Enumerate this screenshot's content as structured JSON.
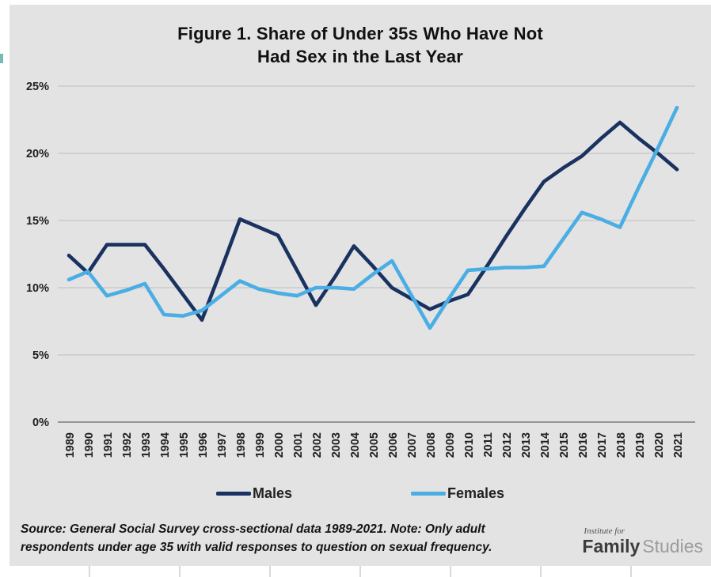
{
  "page": {
    "background": "#ffffff",
    "panel_background": "#e3e3e3"
  },
  "chart_data": {
    "type": "line",
    "title": "Figure 1. Share of Under 35s Who Have Not Had Sex in the Last Year",
    "title_lines": [
      "Figure 1. Share of Under 35s Who Have Not",
      "Had Sex in the Last Year"
    ],
    "x": [
      "1989",
      "1990",
      "1991",
      "1992",
      "1993",
      "1994",
      "1995",
      "1996",
      "1997",
      "1998",
      "1999",
      "2000",
      "2001",
      "2002",
      "2003",
      "2004",
      "2005",
      "2006",
      "2007",
      "2008",
      "2009",
      "2010",
      "2011",
      "2012",
      "2013",
      "2014",
      "2015",
      "2016",
      "2017",
      "2018",
      "2019",
      "2020",
      "2021"
    ],
    "y_tick_labels": [
      "25%",
      "20%",
      "15%",
      "10%",
      "5%",
      "0%"
    ],
    "y_tick_values": [
      25,
      20,
      15,
      10,
      5,
      0
    ],
    "ylim": [
      0,
      25
    ],
    "grid": true,
    "legend_position": "bottom",
    "series": [
      {
        "name": "Males",
        "color": "#1a3260",
        "values": [
          12.4,
          11.1,
          13.2,
          13.2,
          13.2,
          11.4,
          9.5,
          7.6,
          11.3,
          15.1,
          14.5,
          13.9,
          11.3,
          8.7,
          10.8,
          13.1,
          11.6,
          10.0,
          9.2,
          8.4,
          9.0,
          9.5,
          11.6,
          13.8,
          15.9,
          17.9,
          18.9,
          19.8,
          21.1,
          22.3,
          21.1,
          20.0,
          18.8
        ]
      },
      {
        "name": "Females",
        "color": "#4aaee4",
        "values": [
          10.6,
          11.2,
          9.4,
          9.8,
          10.3,
          8.0,
          7.9,
          8.3,
          9.4,
          10.5,
          9.9,
          9.6,
          9.4,
          10.0,
          10.0,
          9.9,
          11.0,
          12.0,
          9.5,
          7.0,
          9.2,
          11.3,
          11.4,
          11.5,
          11.5,
          11.6,
          13.6,
          15.6,
          15.1,
          14.5,
          17.5,
          20.4,
          23.4
        ]
      }
    ],
    "colors": {
      "gridline": "#bcbcbc",
      "axis_line": "#8a8a8a",
      "tick_text": "#1f1f1f"
    }
  },
  "footer": {
    "lines": [
      "Source: General Social Survey cross-sectional data 1989-2021. Note: Only adult",
      "respondents under age 35 with valid responses to question on sexual frequency."
    ]
  },
  "logo": {
    "top_label": "Institute for",
    "name_bold": "Family",
    "name_light": "Studies"
  }
}
